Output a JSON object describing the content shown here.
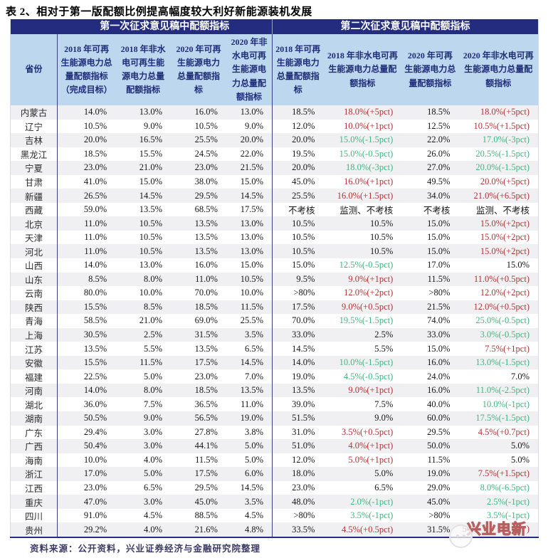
{
  "title": "表 2、相对于第一版配额比例提高幅度较大利好新能源装机发展",
  "table": {
    "group_headers": [
      {
        "label": "第一次征求意见稿中配额指标"
      },
      {
        "label": "第二次征求意见稿中配额指标"
      }
    ],
    "province_header": "省份",
    "column_headers": [
      "2018 年可再生能源电力总量配额指标（完成目标）",
      "2018 年非水电可再生能源电力总量配额指标",
      "2020 年可再生能源电力总量配额指标",
      "2020 年非水电可再生能源电力总量配额指标",
      "2018 年可再生能源电力总量配额指标",
      "2018 年非水电可再生能源电力总量配额指标",
      "2020 年可再生能源电力总量配额指标",
      "2020 年非水电可再生能源电力总量配额指标"
    ],
    "rows": [
      {
        "province": "内蒙古",
        "values": [
          "14.0%",
          "13.0%",
          "16.0%",
          "13.0%",
          "18.5%",
          "18.0%(+5pct)",
          "18.5%",
          "18.0%(+5pct)"
        ]
      },
      {
        "province": "辽宁",
        "values": [
          "10.5%",
          "9.0%",
          "10.5%",
          "9.0%",
          "12.0%",
          "10.0%(+1pct)",
          "12.5%",
          "10.5%(+1.5pct)"
        ]
      },
      {
        "province": "吉林",
        "values": [
          "20.0%",
          "16.5%",
          "25.5%",
          "20.0%",
          "20.0%",
          "15.0%(-1.5pct)",
          "22.0%",
          "17.0%(-3pct)"
        ]
      },
      {
        "province": "黑龙江",
        "values": [
          "18.5%",
          "15.5%",
          "24.5%",
          "22.0%",
          "19.5%",
          "15.0%(-0.5pct)",
          "26.0%",
          "20.5%(-1.5pct)"
        ]
      },
      {
        "province": "宁夏",
        "values": [
          "23.0%",
          "21.0%",
          "23.0%",
          "21.5%",
          "20.0%",
          "18.0%(-3pct)",
          "27.0%",
          "20.0%(-1.5pct)"
        ]
      },
      {
        "province": "甘肃",
        "values": [
          "41.0%",
          "15.0%",
          "38.0%",
          "15.0%",
          "45.0%",
          "16.0%(+1pct)",
          "49.5%",
          "20.0%(+5pct)"
        ]
      },
      {
        "province": "新疆",
        "values": [
          "26.5%",
          "14.5%",
          "29.5%",
          "14.5%",
          "25.5%",
          "16.0%(+1.5pct)",
          "34.0%",
          "21.0%(+6.5pct)"
        ]
      },
      {
        "province": "西藏",
        "values": [
          "59.0%",
          "13.5%",
          "68.5%",
          "17.5%",
          "不考核",
          "监测、不考核",
          "不考核",
          "监测、不考核"
        ]
      },
      {
        "province": "北京",
        "values": [
          "11.0%",
          "10.5%",
          "13.5%",
          "13.0%",
          "10.5%",
          "10.5%",
          "15.0%",
          "15.0%(+2pct)"
        ]
      },
      {
        "province": "天津",
        "values": [
          "11.0%",
          "10.5%",
          "13.5%",
          "13.0%",
          "10.5%",
          "10.5%",
          "15.0%",
          "15.0%(+2pct)"
        ]
      },
      {
        "province": "河北",
        "values": [
          "11.0%",
          "10.5%",
          "13.5%",
          "13.0%",
          "10.5%",
          "10.5%",
          "15.0%",
          "15.0%(+2pct)"
        ]
      },
      {
        "province": "山西",
        "values": [
          "14.0%",
          "13.0%",
          "16.0%",
          "15.0%",
          "15.0%",
          "12.5%(-0.5pct)",
          "17.0%",
          "15.0%"
        ]
      },
      {
        "province": "山东",
        "values": [
          "8.5%",
          "8.0%",
          "11.0%",
          "10.5%",
          "9.5%",
          "9.0%(+1pct)",
          "11.5%",
          "11.0%(+0.5pct)"
        ]
      },
      {
        "province": "云南",
        "values": [
          "80.0%",
          "10.0%",
          "70.0%",
          "10.0%",
          ">80%",
          "12.0%(+2pct)",
          ">80%",
          "12.0%(+2pct)"
        ]
      },
      {
        "province": "陕西",
        "values": [
          "15.5%",
          "8.5%",
          "18.5%",
          "11.5%",
          "17.5%",
          "9.0%(+0.5pct)",
          "21.5%",
          "12.0%(+0.5pct)"
        ]
      },
      {
        "province": "青海",
        "values": [
          "58.5%",
          "21.0%",
          "69.0%",
          "25.5%",
          "70.0%",
          "19.5%(-1.5pct)",
          "74.0%",
          "25.0%(-0.5pct)"
        ]
      },
      {
        "province": "上海",
        "values": [
          "30.5%",
          "2.5%",
          "31.5%",
          "3.5%",
          "33.0%",
          "2.5%",
          "33.0%",
          "3.0%(-0.5pct)"
        ]
      },
      {
        "province": "江苏",
        "values": [
          "13.5%",
          "5.5%",
          "13.5%",
          "6.5%",
          "14.5%",
          "5.5%",
          "15.0%",
          "7.5%(+1pct)"
        ]
      },
      {
        "province": "安徽",
        "values": [
          "15.5%",
          "11.5%",
          "17.5%",
          "14.5%",
          "14.0%",
          "10.0%(-1.5pct)",
          "16.0%",
          "13.0%(-1.5pct)"
        ]
      },
      {
        "province": "福建",
        "values": [
          "22.5%",
          "5.0%",
          "23.0%",
          "7.0%",
          "19.0%",
          "4.5%(-0.5pct)",
          "24.0%",
          "7.0%"
        ]
      },
      {
        "province": "河南",
        "values": [
          "14.0%",
          "8.0%",
          "18.5%",
          "13.5%",
          "13.5%",
          "9.0%(+1pct)",
          "16.0%",
          "11.0%(-2.5pct)"
        ]
      },
      {
        "province": "湖北",
        "values": [
          "36.0%",
          "7.5%",
          "36.5%",
          "11.0%",
          "39.0%",
          "7.5%",
          "40.0%",
          "10.0%(-1pct)"
        ]
      },
      {
        "province": "湖南",
        "values": [
          "50.5%",
          "9.0%",
          "56.5%",
          "19.0%",
          "51.5%",
          "9.0%",
          "60.0%",
          "17.5%(-1.5pct)"
        ]
      },
      {
        "province": "广东",
        "values": [
          "29.4%",
          "3.0%",
          "27.8%",
          "3.8%",
          "31.0%",
          "3.5%(+0.5pct)",
          "29.5%",
          "4.5%(+0.7pct)"
        ]
      },
      {
        "province": "广西",
        "values": [
          "50.4%",
          "3.0%",
          "44.1%",
          "5.0%",
          "51.0%",
          "4.0%(+1pct)",
          "50.0%",
          "5.0%"
        ]
      },
      {
        "province": "海南",
        "values": [
          "10.0%",
          "4.0%",
          "11.5%",
          "5.0%",
          "12.0%",
          "5.0%(+1pct)",
          "11.5%",
          "5.0%"
        ]
      },
      {
        "province": "浙江",
        "values": [
          "17.0%",
          "5.0%",
          "17.5%",
          "6.0%",
          "18.0%",
          "5.0%",
          "19.0%",
          "7.5%(+1.5pct)"
        ]
      },
      {
        "province": "江西",
        "values": [
          "23.0%",
          "6.5%",
          "29.5%",
          "14.5%",
          "23.0%",
          "6.5%",
          "29.0%",
          "8.0%(-6.5pct)"
        ]
      },
      {
        "province": "重庆",
        "values": [
          "47.0%",
          "3.0%",
          "45.0%",
          "3.5%",
          "48.0%",
          "2.0%(-1pct)",
          "45.0%",
          "2.5%(-1pct)"
        ]
      },
      {
        "province": "四川",
        "values": [
          "91.0%",
          "4.5%",
          "88.5%",
          "4.5%",
          ">80%",
          "3.5%(-1pct)",
          ">80%",
          "3.5%(-1pct)"
        ]
      },
      {
        "province": "贵州",
        "values": [
          "29.2%",
          "4.0%",
          "21.6%",
          "4.8%",
          "33.5%",
          "4.5%(+0.5pct)",
          "31.5%",
          "5"
        ],
        "watermark_col": 7,
        "watermark_suffix": ")"
      }
    ]
  },
  "footer": {
    "source": "资料来源：公开资料，兴业证券经济与金融研究院整理"
  },
  "watermark": {
    "text": "兴业电新"
  },
  "colors": {
    "header_navy": "#232C7E",
    "header_blue": "#BDD7EE",
    "increase_red": "#B03434",
    "decrease_green": "#3CB87E",
    "stripe_gray": "#F0F0F3"
  }
}
